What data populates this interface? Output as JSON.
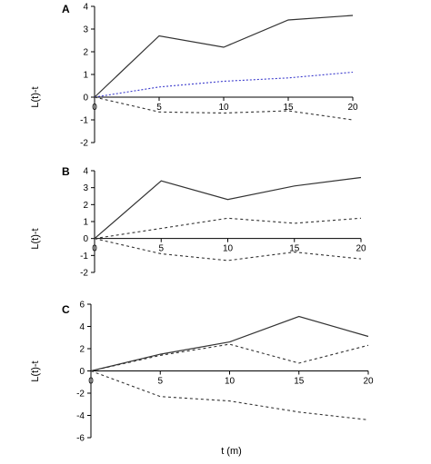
{
  "chart_data": [
    {
      "type": "line",
      "panel_label": "A",
      "ylabel": "L(t)-t",
      "xlabel": "",
      "x": [
        0,
        5,
        10,
        15,
        20
      ],
      "xticks": [
        "0",
        "5",
        "10",
        "15",
        "20"
      ],
      "yticks": [
        "-2",
        "-1",
        "0",
        "1",
        "2",
        "3",
        "4"
      ],
      "ylim": [
        -2,
        4
      ],
      "xlim": [
        0,
        20
      ],
      "series": [
        {
          "values": [
            0,
            2.7,
            2.2,
            3.4,
            3.6
          ],
          "style": "solid",
          "color": "#333333"
        },
        {
          "values": [
            0,
            0.45,
            0.7,
            0.85,
            1.1
          ],
          "style": "dotted",
          "color": "#3a3acc"
        },
        {
          "values": [
            0,
            -0.65,
            -0.7,
            -0.6,
            -1.0
          ],
          "style": "dashed",
          "color": "#333333"
        }
      ]
    },
    {
      "type": "line",
      "panel_label": "B",
      "ylabel": "L(t)-t",
      "xlabel": "",
      "x": [
        0,
        5,
        10,
        15,
        20
      ],
      "xticks": [
        "0",
        "5",
        "10",
        "15",
        "20"
      ],
      "yticks": [
        "-2",
        "-1",
        "0",
        "1",
        "2",
        "3",
        "4"
      ],
      "ylim": [
        -2,
        4
      ],
      "xlim": [
        0,
        20
      ],
      "series": [
        {
          "values": [
            0,
            3.4,
            2.3,
            3.1,
            3.6
          ],
          "style": "solid",
          "color": "#333333"
        },
        {
          "values": [
            0,
            0.6,
            1.2,
            0.9,
            1.2
          ],
          "style": "dashed",
          "color": "#333333"
        },
        {
          "values": [
            0,
            -0.9,
            -1.3,
            -0.8,
            -1.2
          ],
          "style": "dashed",
          "color": "#333333"
        }
      ]
    },
    {
      "type": "line",
      "panel_label": "C",
      "ylabel": "L(t)-t",
      "xlabel": "t (m)",
      "x": [
        0,
        5,
        10,
        15,
        20
      ],
      "xticks": [
        "0",
        "5",
        "10",
        "15",
        "20"
      ],
      "yticks": [
        "-6",
        "-4",
        "-2",
        "0",
        "2",
        "4",
        "6"
      ],
      "ylim": [
        -6,
        6
      ],
      "xlim": [
        0,
        20
      ],
      "series": [
        {
          "values": [
            0,
            1.5,
            2.6,
            4.9,
            3.1
          ],
          "style": "solid",
          "color": "#333333"
        },
        {
          "values": [
            0,
            1.4,
            2.4,
            0.7,
            2.3
          ],
          "style": "dashed",
          "color": "#333333"
        },
        {
          "values": [
            0,
            -2.3,
            -2.7,
            -3.7,
            -4.4
          ],
          "style": "dashed",
          "color": "#333333"
        }
      ]
    }
  ]
}
